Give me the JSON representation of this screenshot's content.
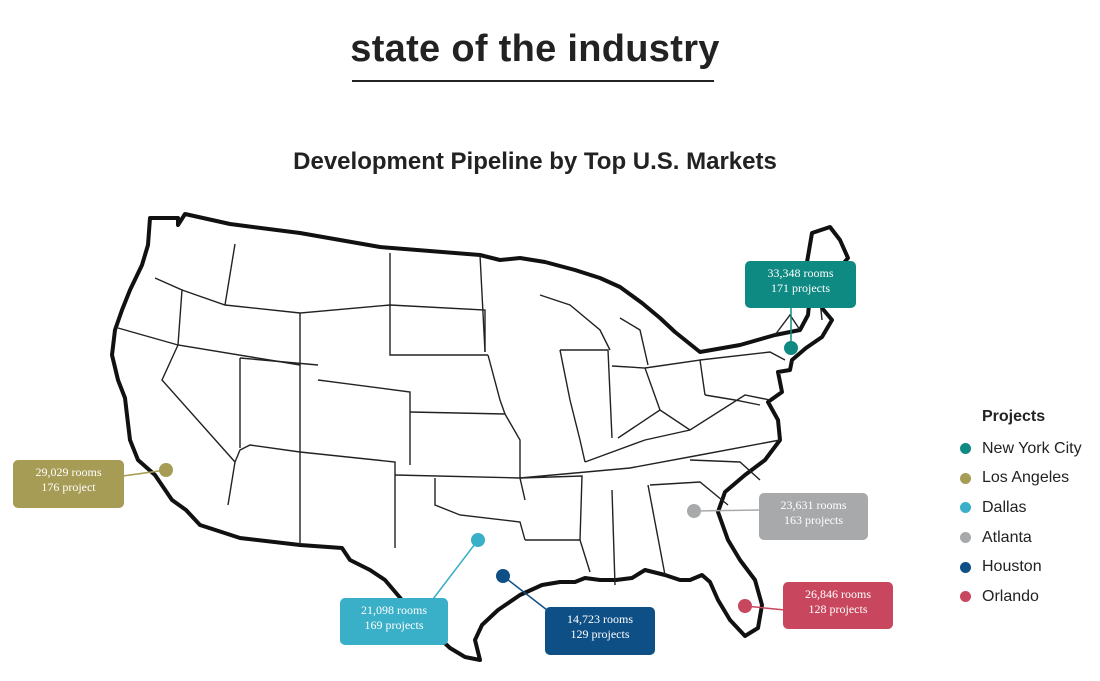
{
  "header": {
    "title": "state of the industry"
  },
  "map": {
    "title": "Development Pipeline by Top U.S. Markets"
  },
  "markets": [
    {
      "key": "nyc",
      "name": "New York City",
      "color": "#0f8a83",
      "rooms": "33,348 rooms",
      "projects": "171 projects"
    },
    {
      "key": "la",
      "name": "Los Angeles",
      "color": "#a79c55",
      "rooms": "29,029 rooms",
      "projects": "176 project"
    },
    {
      "key": "dallas",
      "name": "Dallas",
      "color": "#3aafc8",
      "rooms": "21,098 rooms",
      "projects": "169 projects"
    },
    {
      "key": "atlanta",
      "name": "Atlanta",
      "color": "#a7a9ab",
      "rooms": "23,631 rooms",
      "projects": "163 projects"
    },
    {
      "key": "houston",
      "name": "Houston",
      "color": "#0e4f86",
      "rooms": "14,723 rooms",
      "projects": "129 projects"
    },
    {
      "key": "orlando",
      "name": "Orlando",
      "color": "#c8475e",
      "rooms": "26,846 rooms",
      "projects": "128 projects"
    }
  ],
  "legend": {
    "title": "Projects"
  }
}
